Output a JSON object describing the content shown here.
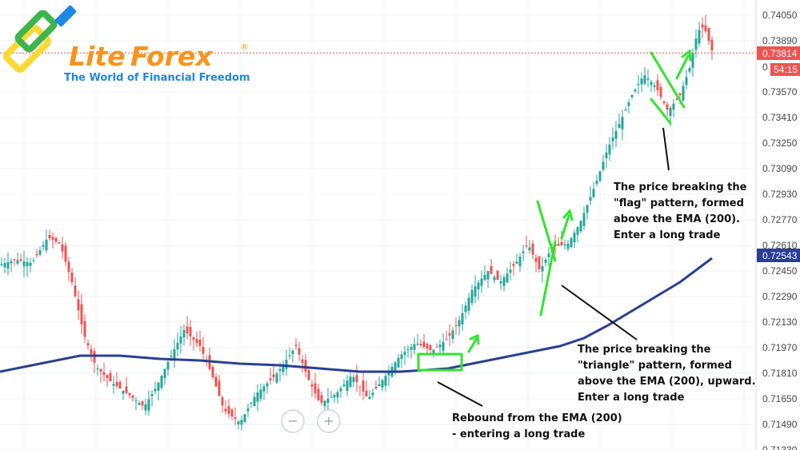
{
  "logo": {
    "part1": "Lite",
    "part2": "Forex",
    "registered": "®",
    "tagline": "The World of Financial Freedom",
    "orange": "#f7941d",
    "blue": "#1e88e5",
    "green": "#3cb54a",
    "yellow": "#fdd835"
  },
  "colors": {
    "up_candle": "#26a69a",
    "down_candle": "#ef5350",
    "ema": "#2a3f94",
    "annotation": "#2ee62e",
    "price_line": "#ef5350"
  },
  "zoom_controls": {
    "minus": "−",
    "plus": "+"
  },
  "chart_data": {
    "type": "candlestick",
    "y_axis_ticks": [
      "0.74050",
      "0.73890",
      "0.73570",
      "0.73410",
      "0.73250",
      "0.73090",
      "0.72930",
      "0.72770",
      "0.72610",
      "0.72450",
      "0.72290",
      "0.72130",
      "0.71970",
      "0.71810",
      "0.71650",
      "0.71490",
      "0.71330"
    ],
    "ylim": [
      0.7133,
      0.7405
    ],
    "current_price": {
      "value": 0.73814,
      "label": "0.73814",
      "timer": "54:15",
      "partial": "0"
    },
    "ema_label": {
      "value": 0.72543,
      "label": "0.72543",
      "name": "EMA (200)"
    },
    "ema_points": [
      [
        0,
        0.7182
      ],
      [
        50,
        0.7187
      ],
      [
        100,
        0.7192
      ],
      [
        150,
        0.7192
      ],
      [
        200,
        0.719
      ],
      [
        250,
        0.7189
      ],
      [
        300,
        0.7187
      ],
      [
        350,
        0.7186
      ],
      [
        400,
        0.7184
      ],
      [
        450,
        0.7182
      ],
      [
        500,
        0.7182
      ],
      [
        560,
        0.7184
      ],
      [
        600,
        0.7188
      ],
      [
        650,
        0.7193
      ],
      [
        700,
        0.7198
      ],
      [
        730,
        0.7203
      ],
      [
        760,
        0.7211
      ],
      [
        800,
        0.7223
      ],
      [
        850,
        0.7238
      ],
      [
        890,
        0.7253
      ]
    ],
    "annotations": [
      {
        "lines": [
          "The price breaking the",
          "\"flag\" pattern, formed",
          "above the EMA (200).",
          "Enter a long trade"
        ]
      },
      {
        "lines": [
          "The price breaking the",
          "\"triangle\" pattern, formed",
          "above the EMA (200), upward.",
          "Enter a long trade"
        ]
      },
      {
        "lines": [
          "Rebound from the EMA (200)",
          "- entering a long trade"
        ]
      }
    ]
  }
}
